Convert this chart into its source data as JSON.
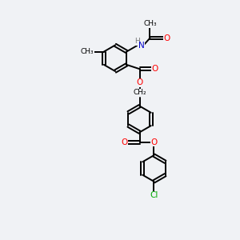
{
  "bg_color": "#f0f2f5",
  "bond_color": "#000000",
  "O_color": "#ff0000",
  "N_color": "#0000cc",
  "Cl_color": "#00aa00",
  "H_color": "#777777",
  "ring_r": 0.55,
  "lw": 1.4,
  "fs": 7.5,
  "canvas_xlim": [
    0,
    8
  ],
  "canvas_ylim": [
    0,
    10
  ]
}
